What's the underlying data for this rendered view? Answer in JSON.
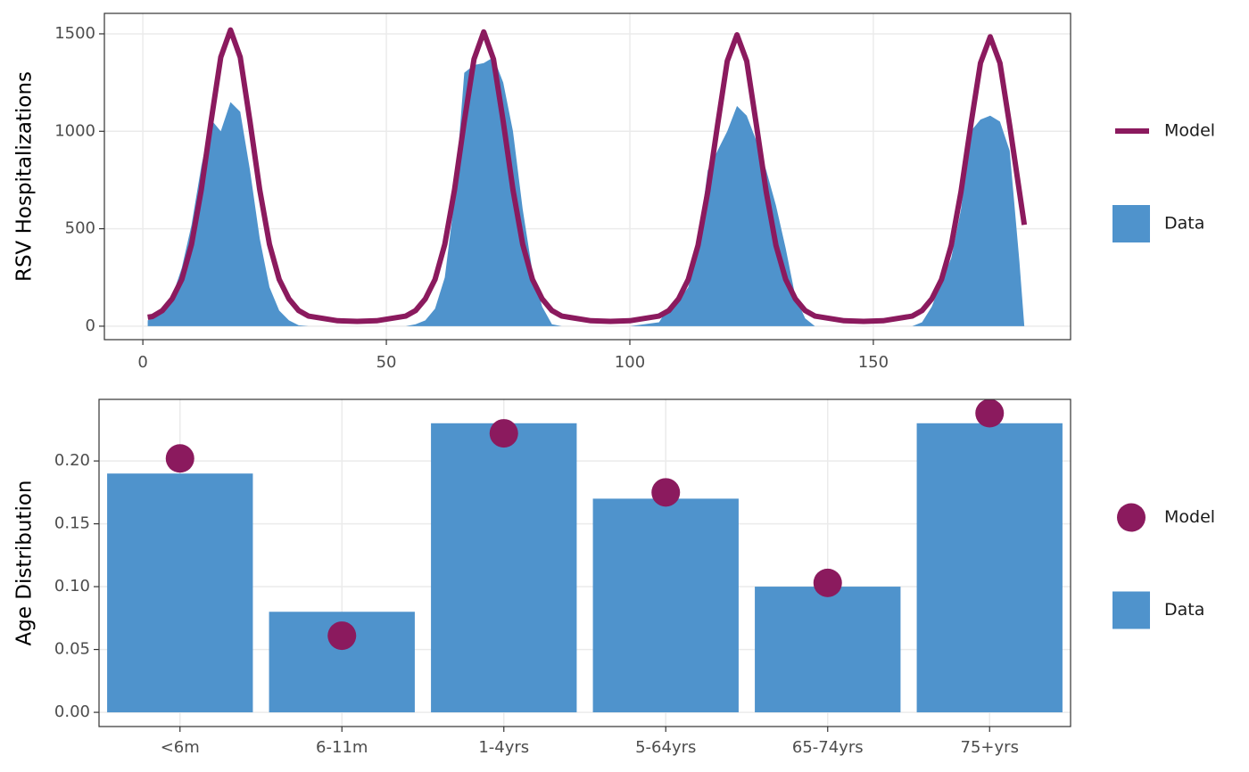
{
  "chart_data": [
    {
      "type": "area",
      "ylabel": "RSV Hospitalizations",
      "x": [
        1,
        2,
        4,
        6,
        8,
        10,
        12,
        14,
        16,
        18,
        20,
        22,
        24,
        26,
        28,
        30,
        32,
        34,
        40,
        44,
        48,
        54,
        56,
        58,
        60,
        62,
        64,
        66,
        68,
        70,
        72,
        74,
        76,
        78,
        80,
        82,
        84,
        86,
        92,
        96,
        100,
        106,
        108,
        110,
        112,
        114,
        116,
        118,
        120,
        122,
        124,
        126,
        128,
        130,
        132,
        134,
        136,
        138,
        144,
        148,
        152,
        158,
        160,
        162,
        164,
        166,
        168,
        170,
        172,
        174,
        176,
        178,
        180,
        181
      ],
      "series": [
        {
          "name": "Data",
          "type": "area",
          "color": "#4f93cc",
          "values": [
            30,
            40,
            80,
            150,
            300,
            520,
            820,
            1060,
            1000,
            1150,
            1100,
            800,
            450,
            200,
            80,
            30,
            5,
            0,
            0,
            0,
            0,
            0,
            10,
            30,
            90,
            250,
            650,
            1300,
            1340,
            1350,
            1380,
            1250,
            1000,
            600,
            280,
            100,
            10,
            0,
            0,
            0,
            0,
            20,
            100,
            130,
            200,
            420,
            800,
            900,
            1000,
            1130,
            1080,
            950,
            800,
            620,
            400,
            150,
            40,
            0,
            0,
            0,
            0,
            0,
            20,
            100,
            230,
            350,
            600,
            1000,
            1060,
            1080,
            1050,
            900,
            330,
            0
          ]
        },
        {
          "name": "Model",
          "type": "line",
          "color": "#8b1a5e",
          "values": [
            46,
            50,
            80,
            140,
            240,
            420,
            700,
            1050,
            1380,
            1520,
            1380,
            1050,
            700,
            420,
            240,
            140,
            80,
            52,
            28,
            25,
            28,
            52,
            80,
            140,
            240,
            420,
            700,
            1050,
            1370,
            1510,
            1370,
            1050,
            700,
            420,
            240,
            140,
            80,
            52,
            28,
            25,
            28,
            52,
            80,
            140,
            240,
            415,
            690,
            1030,
            1360,
            1495,
            1360,
            1030,
            690,
            415,
            240,
            140,
            80,
            52,
            28,
            25,
            28,
            52,
            80,
            140,
            240,
            415,
            690,
            1030,
            1350,
            1485,
            1350,
            1030,
            690,
            520
          ]
        }
      ],
      "xlim": [
        -7.9,
        190.5
      ],
      "xticks": [
        0,
        50,
        100,
        150
      ],
      "ylim": [
        -69,
        1605
      ],
      "yticks": [
        0,
        500,
        1000,
        1500
      ],
      "grid": true
    },
    {
      "type": "bar",
      "ylabel": "Age Distribution",
      "categories": [
        "<6m",
        "6-11m",
        "1-4yrs",
        "5-64yrs",
        "65-74yrs",
        "75+yrs"
      ],
      "series": [
        {
          "name": "Data",
          "type": "bar",
          "color": "#4f93cc",
          "values": [
            0.19,
            0.08,
            0.23,
            0.17,
            0.1,
            0.23
          ]
        },
        {
          "name": "Model",
          "type": "scatter",
          "color": "#8b1a5e",
          "values": [
            0.202,
            0.061,
            0.222,
            0.175,
            0.103,
            0.238
          ]
        }
      ],
      "ylim": [
        -0.0113,
        0.249
      ],
      "yticks": [
        {
          "value": 0,
          "label": "0.00"
        },
        0.05,
        {
          "value": 0.1,
          "label": "0.10"
        },
        0.15,
        {
          "value": 0.2,
          "label": "0.20"
        }
      ],
      "grid": true
    }
  ]
}
